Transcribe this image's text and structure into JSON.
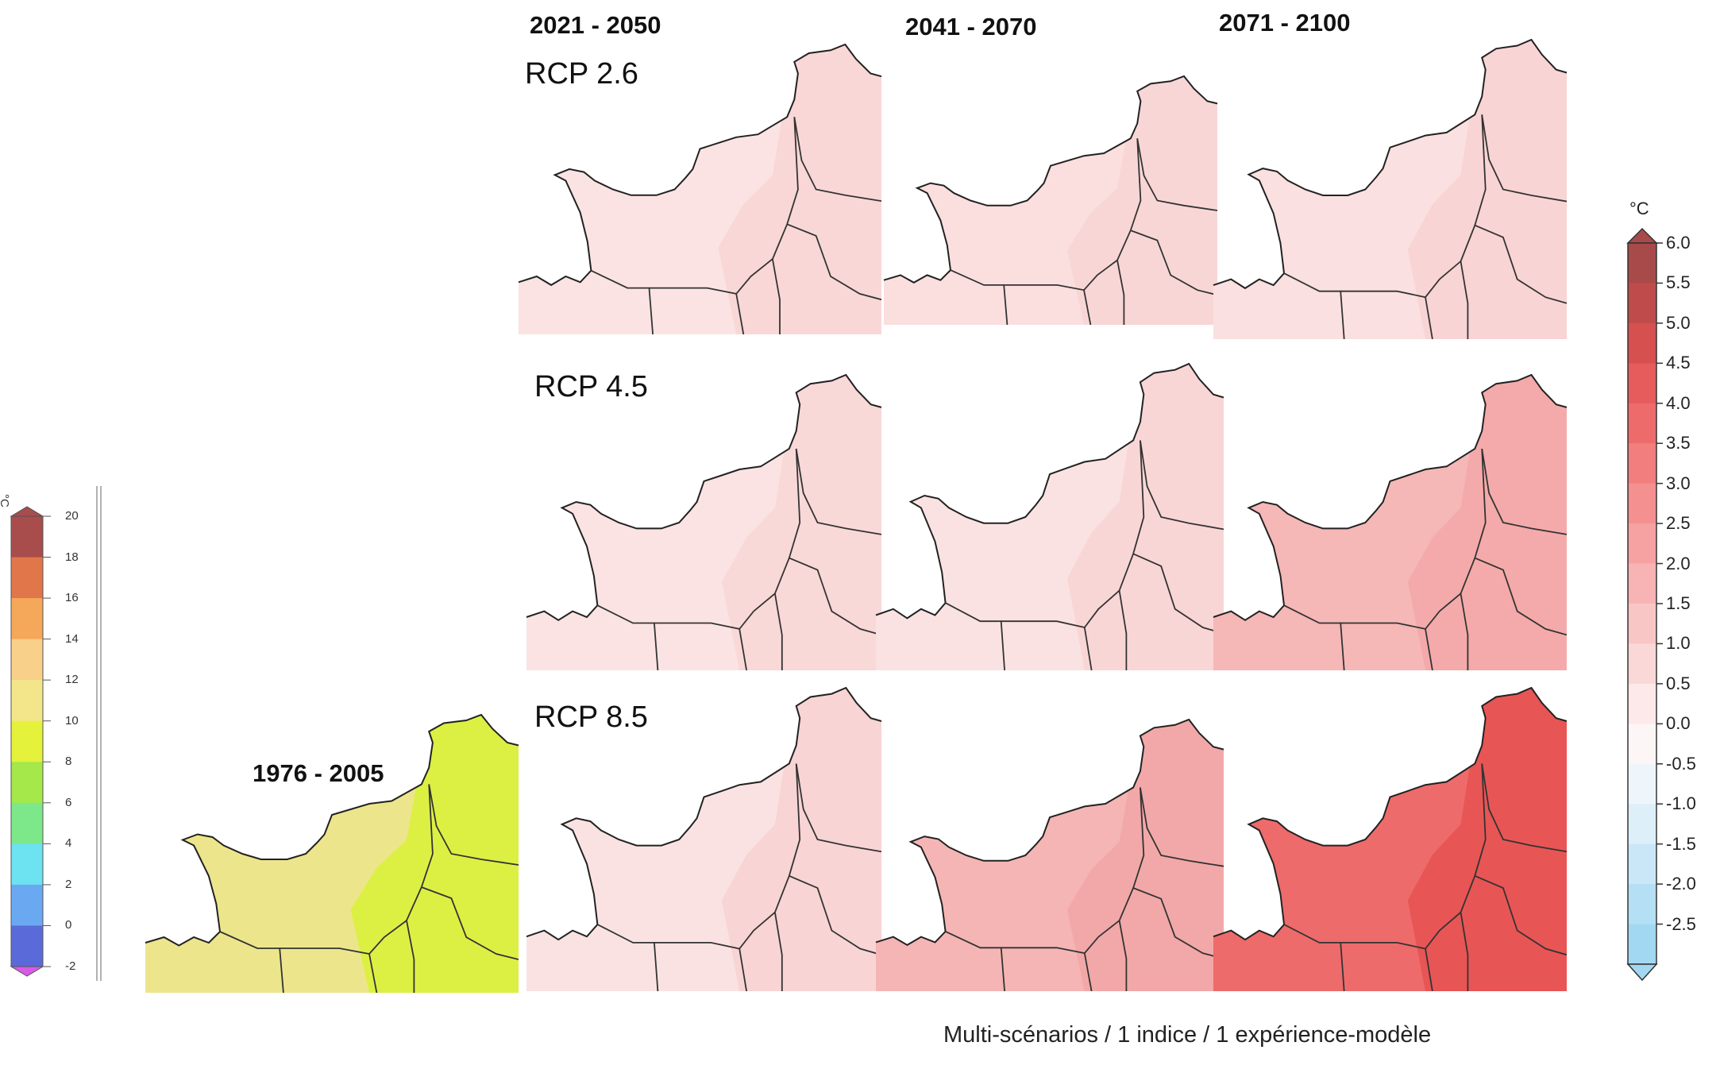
{
  "periods": {
    "p1": "2021 - 2050",
    "p2": "2041 - 2070",
    "p3": "2071 - 2100",
    "baseline": "1976 - 2005"
  },
  "scenarios": {
    "rcp26": "RCP 2.6",
    "rcp45": "RCP 4.5",
    "rcp85": "RCP 8.5"
  },
  "caption": "Multi-scénarios / 1 indice / 1 expérience-modèle",
  "anomaly_legend": {
    "unit": "°C",
    "ticks": [
      "6.0",
      "5.5",
      "5.0",
      "4.5",
      "4.0",
      "3.5",
      "3.0",
      "2.5",
      "2.0",
      "1.5",
      "1.0",
      "0.5",
      "0.0",
      "-0.5",
      "-1.0",
      "-1.5",
      "-2.0",
      "-2.5"
    ],
    "colors": [
      "#a84a4a",
      "#c04b4b",
      "#d65050",
      "#e65b5b",
      "#ee6b6b",
      "#f27e7e",
      "#f59090",
      "#f6a2a2",
      "#f8b4b4",
      "#f9c6c6",
      "#fbd8d8",
      "#fde9e9",
      "#fdf6f6",
      "#eef6fb",
      "#ddeff9",
      "#c9e7f7",
      "#b5dff5",
      "#a3d8f3"
    ]
  },
  "baseline_legend": {
    "unit": "°C",
    "ticks": [
      "20",
      "18",
      "16",
      "14",
      "12",
      "10",
      "8",
      "6",
      "4",
      "2",
      "0",
      "-2"
    ],
    "colors": [
      "#a84c4c",
      "#e0764a",
      "#f5a85a",
      "#f9d08a",
      "#f3e68a",
      "#e4f23c",
      "#a4e84a",
      "#7de88a",
      "#6de2f0",
      "#6aa8f2",
      "#5a6ad8",
      "#d85ae8"
    ]
  },
  "maps": {
    "baseline": {
      "fill": "#ede58c",
      "patch": "#dcf044"
    },
    "r26_p1": {
      "fill": "#fbe3e3",
      "east": "#f9d7d7"
    },
    "r26_p2": {
      "fill": "#fbdede",
      "east": "#f9d6d6"
    },
    "r26_p3": {
      "fill": "#fae0e0",
      "east": "#f9d4d4"
    },
    "r45_p1": {
      "fill": "#fbe3e3",
      "east": "#f9d8d8"
    },
    "r45_p2": {
      "fill": "#fbe2e2",
      "east": "#f9d6d6"
    },
    "r45_p3": {
      "fill": "#f6b7b7",
      "east": "#f4aaaa"
    },
    "r85_p1": {
      "fill": "#fbe2e2",
      "east": "#f8d4d4"
    },
    "r85_p2": {
      "fill": "#f5b5b5",
      "east": "#f2a8a8"
    },
    "r85_p3": {
      "fill": "#ee6b6b",
      "east": "#e85555"
    }
  }
}
